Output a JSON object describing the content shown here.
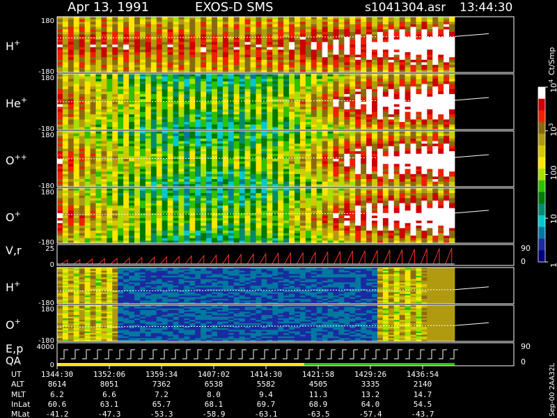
{
  "header": {
    "date": "Apr 13, 1991",
    "instrument": "EXOS-D SMS",
    "file": "s1041304.asr",
    "time": "13:44:30"
  },
  "chart_data": {
    "type": "heatmap",
    "panels": [
      {
        "id": "hplus-angle",
        "label": "H",
        "superscript": "+",
        "ymax": "180",
        "ymin": "-180",
        "ylim": [
          -180,
          180
        ],
        "mean_level": 0.62
      },
      {
        "id": "heplus-angle",
        "label": "He",
        "superscript": "+",
        "ymax": "180",
        "ymin": "-180",
        "ylim": [
          -180,
          180
        ],
        "mean_level": 0.5
      },
      {
        "id": "oplusplus-angle",
        "label": "O",
        "superscript": "++",
        "ymax": "180",
        "ymin": "-180",
        "ylim": [
          -180,
          180
        ],
        "mean_level": 0.5
      },
      {
        "id": "oplus-angle",
        "label": "O",
        "superscript": "+",
        "ymax": "180",
        "ymin": "-180",
        "ylim": [
          -180,
          180
        ],
        "mean_level": 0.52
      },
      {
        "id": "vr",
        "label": "V,r",
        "ymax": "25",
        "ymin": "0",
        "ylim": [
          0,
          25
        ],
        "right_top": "90",
        "right_bottom": "0"
      },
      {
        "id": "hplus-energy",
        "label": "H",
        "superscript": "+",
        "ymin": "-180",
        "ylim": [
          -180,
          180
        ],
        "mean_level": 0.35
      },
      {
        "id": "oplus-energy",
        "label": "O",
        "superscript": "+",
        "ymax": "180",
        "ymin": "-180",
        "ylim": [
          -180,
          180
        ],
        "mean_level": 0.4
      },
      {
        "id": "ep-qa",
        "label": "E,p",
        "label2": "QA",
        "ymax": "4000",
        "ymin": "0",
        "ylim": [
          0,
          4000
        ],
        "right_top": "90",
        "right_bottom": "0"
      }
    ],
    "colorbar": {
      "unit": "Ct/Smp",
      "ticks": [
        {
          "label": "10",
          "sup": "4",
          "level": 1.0
        },
        {
          "label": "10",
          "sup": "3",
          "level": 0.75
        },
        {
          "label": "100",
          "level": 0.5
        },
        {
          "label": "10",
          "level": 0.25
        },
        {
          "label": "1",
          "level": 0.0
        }
      ],
      "colors": [
        "#ffffff",
        "#cc0000",
        "#ee2000",
        "#8a6a10",
        "#b09a10",
        "#d4c800",
        "#ffe600",
        "#a8e000",
        "#30c000",
        "#007a00",
        "#008a70",
        "#00c8d0",
        "#0078a0",
        "#1a2aa0",
        "#00007a"
      ]
    },
    "ephemeris": {
      "row_labels": [
        "UT",
        "ALT",
        "MLT",
        "InLat",
        "MLat"
      ],
      "columns": [
        [
          "1344:30",
          "8614",
          "6.2",
          "60.6",
          "-41.2"
        ],
        [
          "1352:06",
          "8051",
          "6.6",
          "63.1",
          "-47.3"
        ],
        [
          "1359:34",
          "7362",
          "7.2",
          "65.7",
          "-53.3"
        ],
        [
          "1407:02",
          "6538",
          "8.0",
          "68.1",
          "-58.9"
        ],
        [
          "1414:30",
          "5582",
          "9.4",
          "69.7",
          "-63.1"
        ],
        [
          "1421:58",
          "4505",
          "11.3",
          "68.9",
          "-63.5"
        ],
        [
          "1429:26",
          "3335",
          "13.2",
          "64.0",
          "-57.4"
        ],
        [
          "1436:54",
          "2140",
          "14.7",
          "54.5",
          "-43.7"
        ]
      ]
    },
    "footer_tag": "Sep-00 2AA32L",
    "grid": false
  }
}
